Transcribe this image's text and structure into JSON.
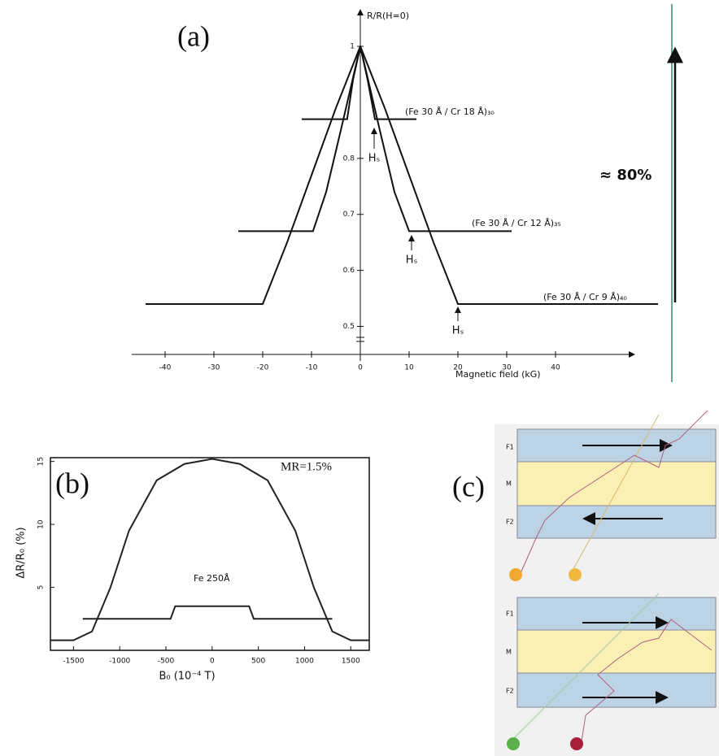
{
  "chart_data": [
    {
      "type": "line",
      "title": "(a)",
      "y_label": "R/R(H=0)",
      "x_label": "Magnetic field (kG)",
      "xlim": [
        -46,
        61
      ],
      "ylim": [
        0.45,
        1.0
      ],
      "xticks": [
        -40,
        -30,
        -20,
        -10,
        0,
        10,
        20,
        30,
        40
      ],
      "yticks": [
        0.5,
        0.6,
        0.7,
        0.8,
        1
      ],
      "series": [
        {
          "name": "(Fe 30 Å / Cr 18 Å)₃₀",
          "color": "#111111",
          "x": [
            -12,
            -2.7,
            -1.5,
            0,
            1.5,
            3,
            11.5
          ],
          "values": [
            0.87,
            0.87,
            0.94,
            1.0,
            0.94,
            0.87,
            0.87
          ]
        },
        {
          "name": "(Fe 30 Å / Cr 12 Å)₃₅",
          "color": "#111111",
          "x": [
            -25,
            -9.7,
            -7,
            -4,
            0,
            4,
            7,
            10,
            31
          ],
          "values": [
            0.67,
            0.67,
            0.74,
            0.85,
            1.0,
            0.85,
            0.74,
            0.67,
            0.67
          ]
        },
        {
          "name": "(Fe 30 Å / Cr 9 Å)₄₀",
          "color": "#111111",
          "x": [
            -44,
            -20,
            -15,
            -10,
            -5,
            0,
            5,
            10,
            15,
            20,
            61
          ],
          "values": [
            0.54,
            0.54,
            0.65,
            0.77,
            0.89,
            1.0,
            0.89,
            0.77,
            0.65,
            0.54,
            0.54
          ]
        }
      ],
      "annotations": [
        "Hₛ",
        "Hₛ",
        "Hₛ",
        "≈ 80%"
      ]
    },
    {
      "type": "line",
      "title": "(b)",
      "y_label": "ΔR/R₀ (%)",
      "x_label": "B₀ (10⁻⁴ T)",
      "xlim": [
        -1750,
        1700
      ],
      "ylim": [
        0,
        15.3
      ],
      "xticks": [
        -1500,
        -1000,
        -500,
        0,
        500,
        1000,
        1500
      ],
      "yticks": [
        5,
        10,
        15
      ],
      "series": [
        {
          "name": "MR=1.5%",
          "color": "#222222",
          "x": [
            -1750,
            -1500,
            -1300,
            -1100,
            -900,
            -600,
            -300,
            0,
            300,
            600,
            900,
            1100,
            1300,
            1500,
            1700
          ],
          "values": [
            0.8,
            0.8,
            1.5,
            5,
            9.5,
            13.5,
            14.8,
            15.2,
            14.8,
            13.5,
            9.5,
            5,
            1.5,
            0.8,
            0.8
          ]
        },
        {
          "name": "Fe 250Å",
          "color": "#222222",
          "x": [
            -1400,
            -450,
            -400,
            400,
            450,
            1300
          ],
          "values": [
            2.5,
            2.5,
            3.5,
            3.5,
            2.5,
            2.5
          ]
        }
      ]
    }
  ],
  "diagram": {
    "label": "(c)",
    "panels": [
      {
        "layers": [
          "F1",
          "M",
          "F2"
        ]
      },
      {
        "layers": [
          "F1",
          "M",
          "F2"
        ]
      }
    ]
  }
}
